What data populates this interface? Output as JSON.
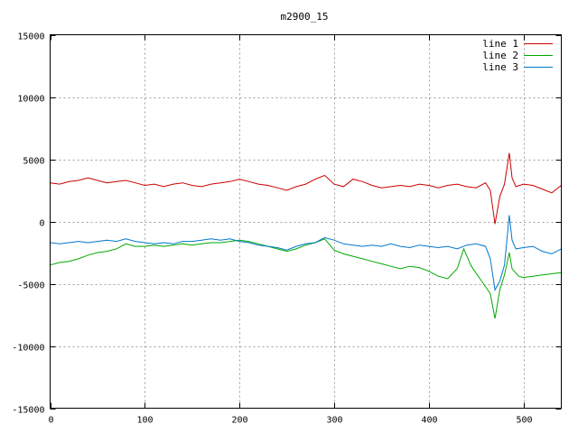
{
  "chart_data": {
    "type": "line",
    "title": "m2900_15",
    "xlabel": "",
    "ylabel": "",
    "xlim": [
      0,
      540
    ],
    "ylim": [
      -15000,
      15000
    ],
    "x_ticks": [
      0,
      100,
      200,
      300,
      400,
      500
    ],
    "y_ticks": [
      -15000,
      -10000,
      -5000,
      0,
      5000,
      10000,
      15000
    ],
    "grid": true,
    "legend_position": "top-right",
    "colors": {
      "line 1": "#cc0000",
      "line 2": "#00aa00",
      "line 3": "#0077cc"
    },
    "series": [
      {
        "name": "line 1",
        "x": [
          0,
          10,
          20,
          30,
          40,
          50,
          60,
          70,
          80,
          90,
          100,
          110,
          120,
          130,
          140,
          150,
          160,
          170,
          180,
          190,
          200,
          210,
          220,
          230,
          240,
          250,
          260,
          270,
          280,
          290,
          300,
          310,
          320,
          330,
          340,
          350,
          360,
          370,
          380,
          390,
          400,
          410,
          420,
          430,
          440,
          450,
          460,
          465,
          470,
          475,
          480,
          485,
          488,
          492,
          500,
          510,
          520,
          530,
          540
        ],
        "y": [
          3100,
          3000,
          3200,
          3300,
          3500,
          3300,
          3100,
          3200,
          3300,
          3100,
          2900,
          3000,
          2800,
          3000,
          3100,
          2900,
          2800,
          3000,
          3100,
          3200,
          3400,
          3200,
          3000,
          2900,
          2700,
          2500,
          2800,
          3000,
          3400,
          3700,
          3000,
          2800,
          3400,
          3200,
          2900,
          2700,
          2800,
          2900,
          2800,
          3000,
          2900,
          2700,
          2900,
          3000,
          2800,
          2700,
          3100,
          2500,
          -200,
          2000,
          3000,
          5500,
          3500,
          2800,
          3000,
          2900,
          2600,
          2300,
          2900
        ]
      },
      {
        "name": "line 2",
        "x": [
          0,
          10,
          20,
          30,
          40,
          50,
          60,
          70,
          80,
          90,
          100,
          110,
          120,
          130,
          140,
          150,
          160,
          170,
          180,
          190,
          200,
          210,
          220,
          230,
          240,
          250,
          260,
          270,
          280,
          290,
          300,
          310,
          320,
          330,
          340,
          350,
          360,
          370,
          380,
          390,
          400,
          410,
          420,
          430,
          437,
          445,
          455,
          465,
          470,
          475,
          480,
          485,
          488,
          495,
          500,
          510,
          520,
          530,
          540
        ],
        "y": [
          -3500,
          -3300,
          -3200,
          -3000,
          -2700,
          -2500,
          -2400,
          -2200,
          -1800,
          -2000,
          -2000,
          -1900,
          -2000,
          -1900,
          -1800,
          -1900,
          -1800,
          -1700,
          -1700,
          -1600,
          -1500,
          -1600,
          -1800,
          -2000,
          -2200,
          -2400,
          -2200,
          -1900,
          -1700,
          -1400,
          -2300,
          -2600,
          -2800,
          -3000,
          -3200,
          -3400,
          -3600,
          -3800,
          -3600,
          -3700,
          -4000,
          -4400,
          -4600,
          -3800,
          -2200,
          -3600,
          -4700,
          -5800,
          -7800,
          -5500,
          -4300,
          -2500,
          -3800,
          -4400,
          -4500,
          -4400,
          -4300,
          -4200,
          -4100
        ]
      },
      {
        "name": "line 3",
        "x": [
          0,
          10,
          20,
          30,
          40,
          50,
          60,
          70,
          80,
          90,
          100,
          110,
          120,
          130,
          140,
          150,
          160,
          170,
          180,
          190,
          200,
          210,
          220,
          230,
          240,
          250,
          260,
          270,
          280,
          290,
          300,
          310,
          320,
          330,
          340,
          350,
          360,
          370,
          380,
          390,
          400,
          410,
          420,
          430,
          440,
          450,
          460,
          465,
          470,
          475,
          480,
          485,
          488,
          492,
          500,
          510,
          520,
          530,
          540
        ],
        "y": [
          -1700,
          -1800,
          -1700,
          -1600,
          -1700,
          -1600,
          -1500,
          -1600,
          -1400,
          -1600,
          -1700,
          -1800,
          -1700,
          -1800,
          -1600,
          -1600,
          -1500,
          -1400,
          -1500,
          -1400,
          -1600,
          -1700,
          -1900,
          -2000,
          -2100,
          -2300,
          -2000,
          -1800,
          -1700,
          -1300,
          -1500,
          -1800,
          -1900,
          -2000,
          -1900,
          -2000,
          -1800,
          -2000,
          -2100,
          -1900,
          -2000,
          -2100,
          -2000,
          -2200,
          -1900,
          -1800,
          -2000,
          -3000,
          -5500,
          -4800,
          -3500,
          500,
          -1500,
          -2200,
          -2100,
          -2000,
          -2400,
          -2600,
          -2200
        ]
      }
    ]
  }
}
